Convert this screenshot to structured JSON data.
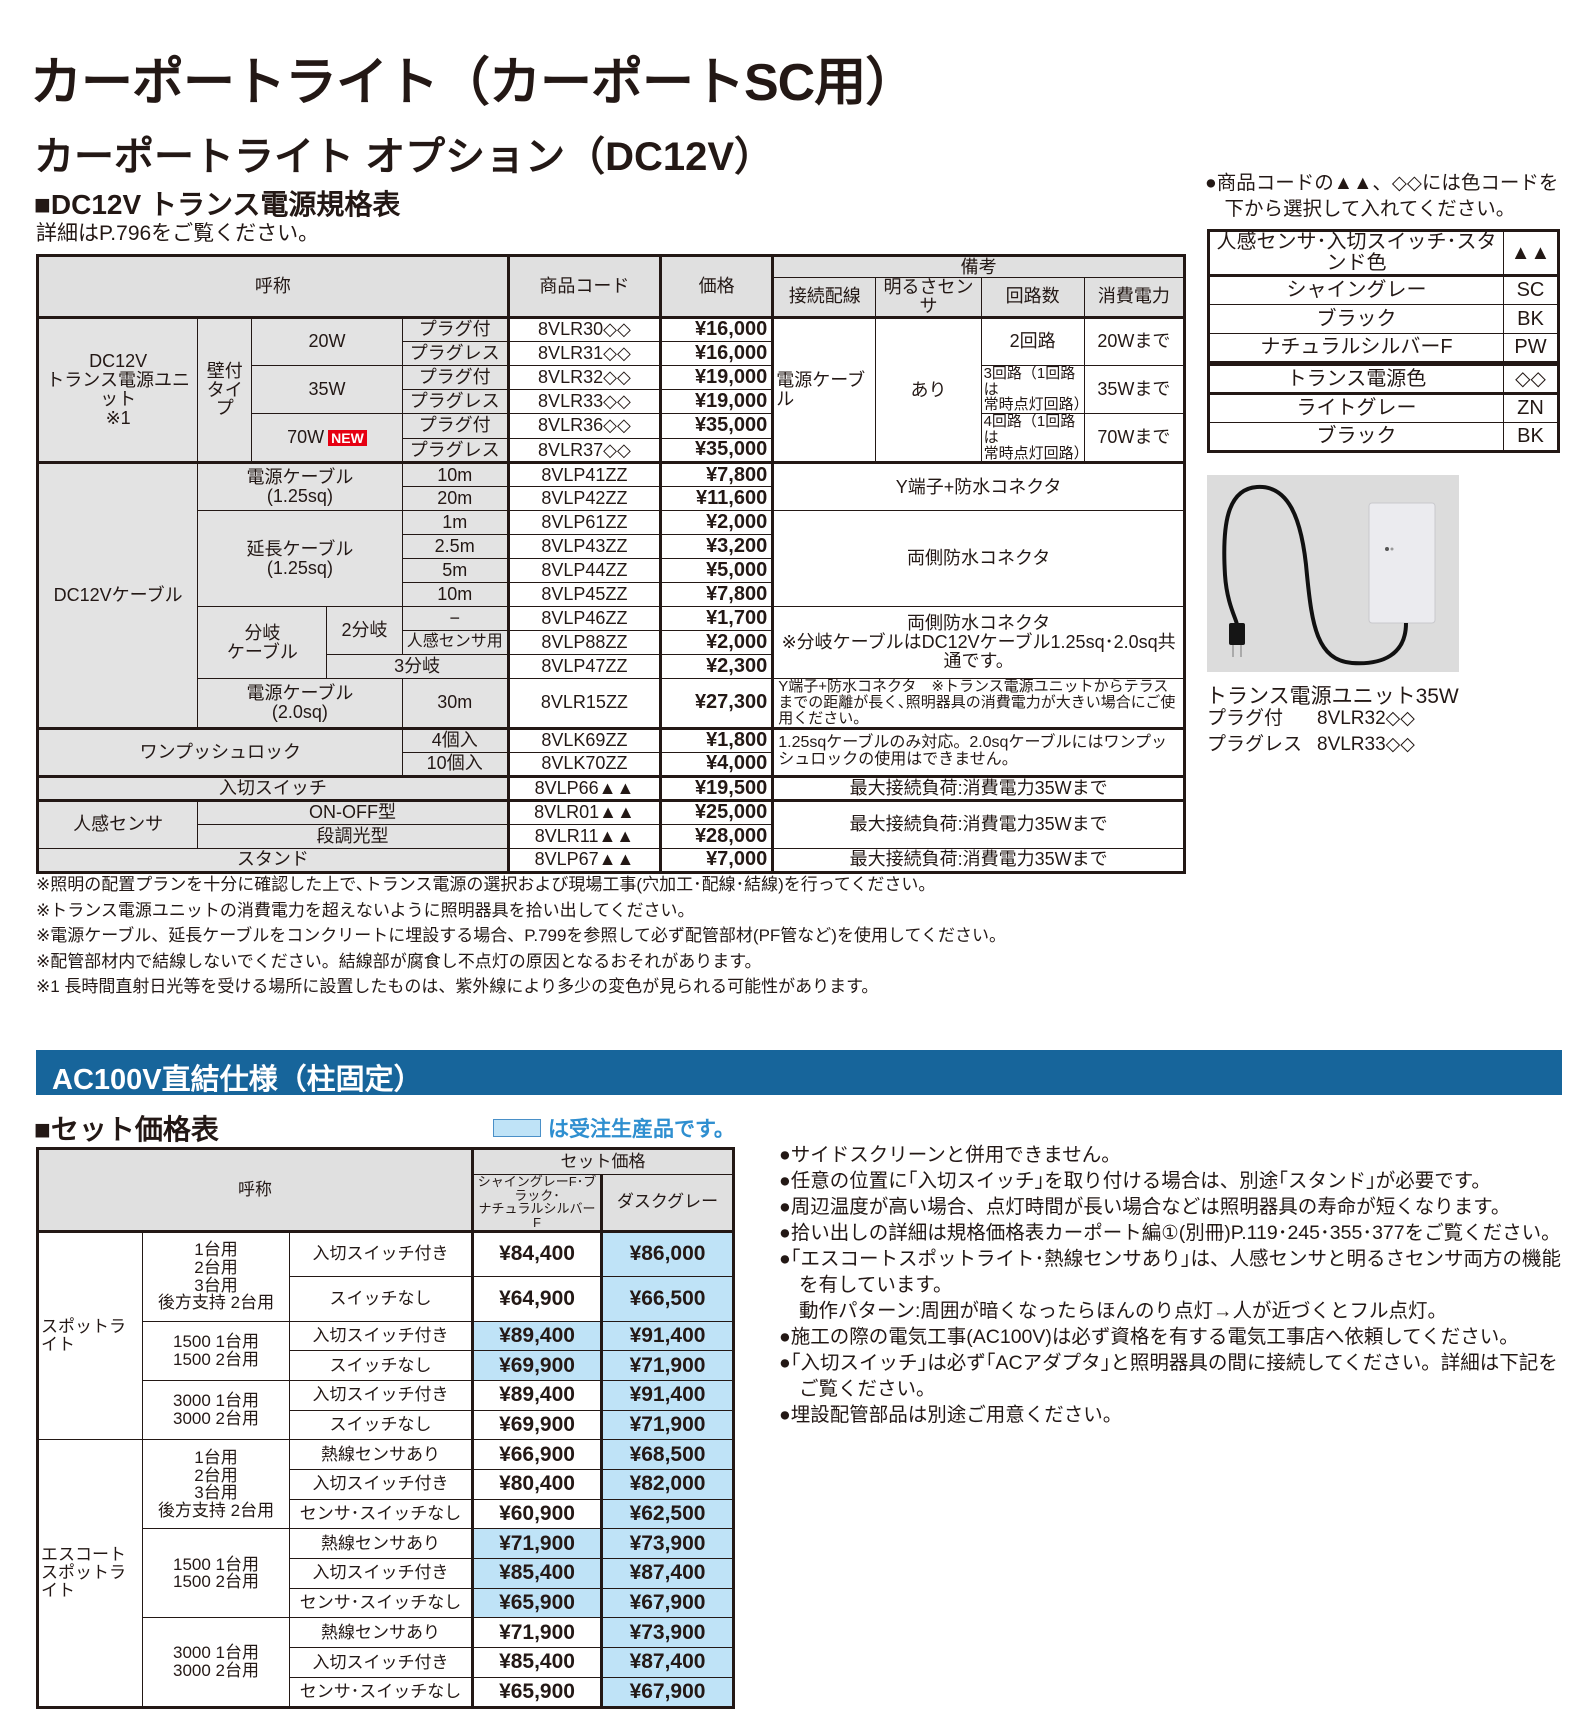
{
  "page": {
    "title": "カーポートライト（カーポートSC用）",
    "subtitle": "カーポートライト オプション（DC12V）",
    "section1_title": "■DC12V トランス電源規格表",
    "section1_note": "詳細はP.796をご覧ください。"
  },
  "t1": {
    "h": {
      "name": "呼称",
      "code": "商品コード",
      "price": "価格",
      "remarks": "備考",
      "wiring": "接続配線",
      "sensor": "明るさセンサ",
      "circuits": "回路数",
      "power": "消費電力"
    },
    "unit": {
      "label": "DC12V\nトランス電源ユニット\n※1",
      "type": "壁付\nタイプ",
      "wiring": "電源ケーブ\nル",
      "sensor": "あり",
      "new_badge": "NEW",
      "variants": [
        {
          "watt": "20W",
          "circuits": "2回路",
          "power": "20Wまで"
        },
        {
          "watt": "35W",
          "circuits": "3回路（1回路は\n常時点灯回路）",
          "power": "35Wまで"
        },
        {
          "watt": "70W",
          "circuits": "4回路（1回路は\n常時点灯回路）",
          "power": "70Wまで"
        }
      ],
      "rows": [
        {
          "plug": "プラグ付",
          "code": "8VLR30◇◇",
          "price": "¥16,000"
        },
        {
          "plug": "プラグレス",
          "code": "8VLR31◇◇",
          "price": "¥16,000"
        },
        {
          "plug": "プラグ付",
          "code": "8VLR32◇◇",
          "price": "¥19,000"
        },
        {
          "plug": "プラグレス",
          "code": "8VLR33◇◇",
          "price": "¥19,000"
        },
        {
          "plug": "プラグ付",
          "code": "8VLR36◇◇",
          "price": "¥35,000"
        },
        {
          "plug": "プラグレス",
          "code": "8VLR37◇◇",
          "price": "¥35,000"
        }
      ]
    },
    "cable": {
      "label": "DC12Vケーブル",
      "power_label": "電源ケーブル\n(1.25sq)",
      "power_note": "Y端子+防水コネクタ",
      "ext_label": "延長ケーブル\n(1.25sq)",
      "ext_note": "両側防水コネクタ",
      "branch_label": "分岐\nケーブル",
      "branch2": "2分岐",
      "branch3": "3分岐",
      "branch_note": "両側防水コネクタ\n※分岐ケーブルはDC12Vケーブル1.25sq･2.0sq共通です。",
      "power20_label": "電源ケーブル\n(2.0sq)",
      "power20_note": "Y端子+防水コネクタ　※トランス電源ユニットからテラスまでの距離が長く､照明器具の消費電力が大きい場合にご使用ください。",
      "rows": [
        {
          "size": "10m",
          "code": "8VLP41ZZ",
          "price": "¥7,800"
        },
        {
          "size": "20m",
          "code": "8VLP42ZZ",
          "price": "¥11,600"
        },
        {
          "size": "1m",
          "code": "8VLP61ZZ",
          "price": "¥2,000"
        },
        {
          "size": "2.5m",
          "code": "8VLP43ZZ",
          "price": "¥3,200"
        },
        {
          "size": "5m",
          "code": "8VLP44ZZ",
          "price": "¥5,000"
        },
        {
          "size": "10m",
          "code": "8VLP45ZZ",
          "price": "¥7,800"
        },
        {
          "size": "−",
          "code": "8VLP46ZZ",
          "price": "¥1,700"
        },
        {
          "size": "人感センサ用",
          "code": "8VLP88ZZ",
          "price": "¥2,000"
        },
        {
          "size": "",
          "code": "8VLP47ZZ",
          "price": "¥2,300"
        },
        {
          "size": "30m",
          "code": "8VLR15ZZ",
          "price": "¥27,300"
        }
      ]
    },
    "lock": {
      "label": "ワンプッシュロック",
      "note": "1.25sqケーブルのみ対応。2.0sqケーブルにはワンプッシュロックの使用はできません。",
      "rows": [
        {
          "qty": "4個入",
          "code": "8VLK69ZZ",
          "price": "¥1,800"
        },
        {
          "qty": "10個入",
          "code": "8VLK70ZZ",
          "price": "¥4,000"
        }
      ]
    },
    "switch": {
      "label": "入切スイッチ",
      "code": "8VLP66▲▲",
      "price": "¥19,500",
      "note": "最大接続負荷:消費電力35Wまで"
    },
    "sensor": {
      "label": "人感センサ",
      "note": "最大接続負荷:消費電力35Wまで",
      "rows": [
        {
          "type": "ON-OFF型",
          "code": "8VLR01▲▲",
          "price": "¥25,000"
        },
        {
          "type": "段調光型",
          "code": "8VLR11▲▲",
          "price": "¥28,000"
        }
      ]
    },
    "stand": {
      "label": "スタンド",
      "code": "8VLP67▲▲",
      "price": "¥7,000",
      "note": "最大接続負荷:消費電力35Wまで"
    }
  },
  "footnotes": [
    "※照明の配置プランを十分に確認した上で､トランス電源の選択および現場工事(穴加工･配線･結線)を行ってください。",
    "※トランス電源ユニットの消費電力を超えないように照明器具を拾い出してください。",
    "※電源ケーブル、延長ケーブルをコンクリートに埋設する場合、P.799を参照して必ず配管部材(PF管など)を使用してください。",
    "※配管部材内で結線しないでください。結線部が腐食し不点灯の原因となるおそれがあります。",
    "※1 長時間直射日光等を受ける場所に設置したものは、紫外線により多少の変色が見られる可能性があります。"
  ],
  "right": {
    "color_note": "●商品コードの▲▲、◇◇には色コードを\n　下から選択して入れてください。",
    "sensor_colors": {
      "header": "人感センサ･入切スイッチ･スタンド色",
      "symbol": "▲▲",
      "rows": [
        {
          "name": "シャイングレー",
          "code": "SC"
        },
        {
          "name": "ブラック",
          "code": "BK"
        },
        {
          "name": "ナチュラルシルバーF",
          "code": "PW"
        }
      ]
    },
    "trans_colors": {
      "header": "トランス電源色",
      "symbol": "◇◇",
      "rows": [
        {
          "name": "ライトグレー",
          "code": "ZN"
        },
        {
          "name": "ブラック",
          "code": "BK"
        }
      ]
    },
    "caption": "トランス電源ユニット35W",
    "caption_rows": [
      {
        "label": "プラグ付",
        "code": "8VLR32◇◇"
      },
      {
        "label": "プラグレス",
        "code": "8VLR33◇◇"
      }
    ]
  },
  "ac": {
    "bar_title": "AC100V直結仕様（柱固定）",
    "section_title": "■セット価格表",
    "legend_text": "は受注生産品です。",
    "legend_color": "#bfe3f7",
    "h": {
      "name": "呼称",
      "set_price": "セット価格",
      "col1": "シャイングレーF･ブラック･\nナチュラルシルバーF",
      "col2": "ダスクグレー"
    },
    "groups": [
      {
        "label": "スポットライト",
        "subs": [
          {
            "label": "1台用\n2台用\n3台用\n後方支持 2台用",
            "rows": [
              {
                "type": "入切スイッチ付き",
                "p1": "¥84,400",
                "p2": "¥86,000"
              },
              {
                "type": "スイッチなし",
                "p1": "¥64,900",
                "p2": "¥66,500"
              }
            ]
          },
          {
            "label": "1500 1台用\n1500 2台用",
            "rows": [
              {
                "type": "入切スイッチ付き",
                "p1": "¥89,400",
                "p2": "¥91,400"
              },
              {
                "type": "スイッチなし",
                "p1": "¥69,900",
                "p2": "¥71,900"
              }
            ]
          },
          {
            "label": "3000 1台用\n3000 2台用",
            "rows": [
              {
                "type": "入切スイッチ付き",
                "p1": "¥89,400",
                "p2": "¥91,400"
              },
              {
                "type": "スイッチなし",
                "p1": "¥69,900",
                "p2": "¥71,900"
              }
            ]
          }
        ]
      },
      {
        "label": "エスコート\nスポットライト",
        "subs": [
          {
            "label": "1台用\n2台用\n3台用\n後方支持 2台用",
            "rows": [
              {
                "type": "熱線センサあり",
                "p1": "¥66,900",
                "p2": "¥68,500"
              },
              {
                "type": "入切スイッチ付き",
                "p1": "¥80,400",
                "p2": "¥82,000"
              },
              {
                "type": "センサ･スイッチなし",
                "p1": "¥60,900",
                "p2": "¥62,500"
              }
            ]
          },
          {
            "label": "1500 1台用\n1500 2台用",
            "rows": [
              {
                "type": "熱線センサあり",
                "p1": "¥71,900",
                "p2": "¥73,900"
              },
              {
                "type": "入切スイッチ付き",
                "p1": "¥85,400",
                "p2": "¥87,400"
              },
              {
                "type": "センサ･スイッチなし",
                "p1": "¥65,900",
                "p2": "¥67,900"
              }
            ]
          },
          {
            "label": "3000 1台用\n3000 2台用",
            "rows": [
              {
                "type": "熱線センサあり",
                "p1": "¥71,900",
                "p2": "¥73,900"
              },
              {
                "type": "入切スイッチ付き",
                "p1": "¥85,400",
                "p2": "¥87,400"
              },
              {
                "type": "センサ･スイッチなし",
                "p1": "¥65,900",
                "p2": "¥67,900"
              }
            ]
          }
        ]
      }
    ],
    "bullets": [
      "●サイドスクリーンと併用できません。",
      "●任意の位置に｢入切スイッチ｣を取り付ける場合は、別途｢スタンド｣が必要です。",
      "●周辺温度が高い場合、点灯時間が長い場合などは照明器具の寿命が短くなります。",
      "●拾い出しの詳細は規格価格表カーポート編①(別冊)P.119･245･355･377をご覧ください。",
      "●｢エスコートスポットライト･熱線センサあり｣は、人感センサと明るさセンサ両方の機能を有しています。",
      "動作パターン:周囲が暗くなったらほんのり点灯→人が近づくとフル点灯。",
      "●施工の際の電気工事(AC100V)は必ず資格を有する電気工事店へ依頼してください。",
      "●｢入切スイッチ｣は必ず｢ACアダプタ｣と照明器具の間に接続してください。詳細は下記をご覧ください。",
      "●埋設配管部品は別途ご用意ください。"
    ]
  }
}
